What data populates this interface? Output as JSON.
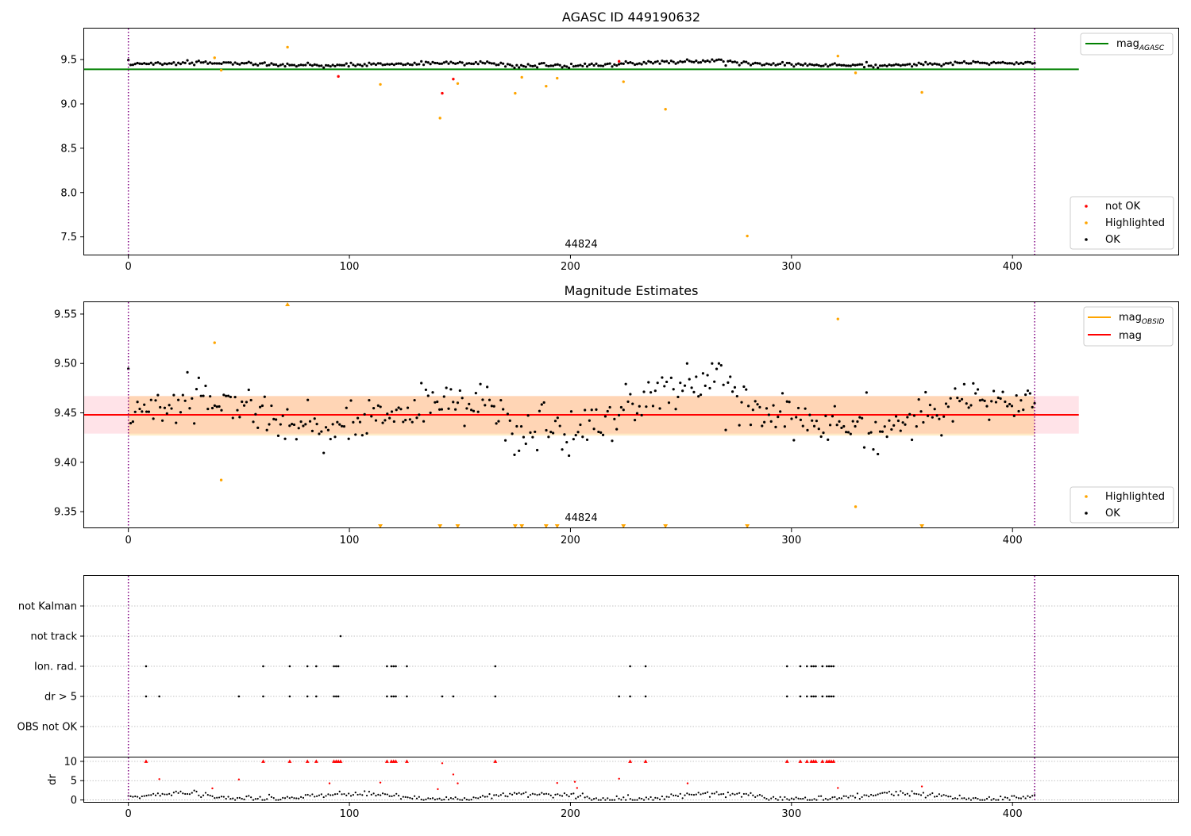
{
  "chart_data": [
    {
      "type": "scatter",
      "title": "AGASC ID 449190632",
      "xlabel": "",
      "ylabel": "",
      "xlim": [
        -20,
        475
      ],
      "ylim": [
        7.3,
        9.85
      ],
      "xticks": [
        "0",
        "100",
        "200",
        "300",
        "400"
      ],
      "yticks": [
        "7.5",
        "8.0",
        "8.5",
        "9.0",
        "9.5"
      ],
      "vlines_x": [
        0,
        410
      ],
      "annotation": {
        "text": "44824",
        "x": 205,
        "y": 7.36
      },
      "hline": {
        "label": "mag_AGASC",
        "y": 9.39,
        "xmax": 430,
        "color": "#008000"
      },
      "grid": false,
      "legend_top": {
        "placement": "top-right",
        "entries": [
          {
            "label": "mag",
            "sub": "AGASC",
            "color": "#008000",
            "kind": "line"
          }
        ]
      },
      "legend_bottom": {
        "placement": "bottom-right",
        "entries": [
          {
            "label": "not OK",
            "color": "#ff0000",
            "kind": "dot"
          },
          {
            "label": "Highlighted",
            "color": "#ffa500",
            "kind": "dot"
          },
          {
            "label": "OK",
            "color": "#000000",
            "kind": "dot"
          }
        ]
      },
      "series": [
        {
          "name": "not OK",
          "color": "#ff0000",
          "x": [
            95,
            142,
            147,
            222
          ],
          "y": [
            9.31,
            9.12,
            9.28,
            9.48
          ]
        },
        {
          "name": "Highlighted",
          "color": "#ffa500",
          "x": [
            39,
            42,
            72,
            114,
            141,
            149,
            175,
            178,
            189,
            194,
            224,
            243,
            280,
            321,
            329,
            359
          ],
          "y": [
            9.52,
            9.38,
            9.64,
            9.22,
            8.84,
            9.23,
            9.12,
            9.3,
            9.2,
            9.29,
            9.25,
            8.94,
            7.51,
            9.54,
            9.35,
            9.13
          ]
        },
        {
          "name": "OK",
          "color": "#000000",
          "x_range": [
            0,
            410
          ],
          "count": 400,
          "y_mean": 9.448,
          "y_spread": 0.02
        }
      ]
    },
    {
      "type": "scatter",
      "title": "Magnitude Estimates",
      "xlabel": "",
      "ylabel": "",
      "xlim": [
        -20,
        475
      ],
      "ylim": [
        9.334,
        9.562
      ],
      "xticks": [
        "0",
        "100",
        "200",
        "300",
        "400"
      ],
      "yticks": [
        "9.35",
        "9.40",
        "9.45",
        "9.50",
        "9.55"
      ],
      "vlines_x": [
        0,
        410
      ],
      "annotation": {
        "text": "44824",
        "x": 205,
        "y": 9.339
      },
      "mag_line": {
        "y": 9.448,
        "xmin": -20,
        "xmax": 430,
        "color": "#ff0000"
      },
      "mag_band": {
        "ymin": 9.429,
        "ymax": 9.467,
        "xmin": -20,
        "xmax": 430,
        "color": "#ffc0cb"
      },
      "obsid_band": {
        "ymin": 9.427,
        "ymax": 9.467,
        "xmin": 0,
        "xmax": 410,
        "color": "#ffa500"
      },
      "grid": false,
      "legend_top": {
        "placement": "top-right",
        "entries": [
          {
            "label": "mag",
            "sub": "OBSID",
            "color": "#ffa500",
            "kind": "line"
          },
          {
            "label": "mag",
            "sub": "",
            "color": "#ff0000",
            "kind": "line"
          }
        ]
      },
      "legend_bottom": {
        "placement": "bottom-right",
        "entries": [
          {
            "label": "Highlighted",
            "color": "#ffa500",
            "kind": "dot"
          },
          {
            "label": "OK",
            "color": "#000000",
            "kind": "dot"
          }
        ]
      },
      "highlighted_points": {
        "x": [
          39,
          42,
          321,
          329
        ],
        "y": [
          9.521,
          9.382,
          9.545,
          9.355
        ]
      },
      "out_of_range_up_x": [
        72
      ],
      "out_of_range_down_x": [
        114,
        141,
        149,
        175,
        178,
        189,
        194,
        224,
        243,
        280,
        359
      ],
      "series": [
        {
          "name": "OK",
          "color": "#000000",
          "x_range": [
            0,
            410
          ],
          "count": 400,
          "y_mean": 9.448,
          "y_spread": 0.022
        }
      ]
    },
    {
      "type": "scatter",
      "title": "",
      "xlim": [
        -20,
        475
      ],
      "categories": [
        "not Kalman",
        "not track",
        "Ion. rad.",
        "dr > 5",
        "OBS not OK"
      ],
      "vlines_x": [
        0,
        410
      ],
      "grid": true,
      "flags": {
        "not track": [
          96
        ],
        "Ion. rad.": [
          8,
          61,
          73,
          81,
          85,
          93,
          94,
          95,
          117,
          119,
          120,
          121,
          126,
          166,
          227,
          234,
          298,
          304,
          307,
          309,
          310,
          311,
          314,
          316,
          317,
          318,
          319
        ],
        "dr > 5": [
          8,
          14,
          50,
          61,
          73,
          81,
          85,
          93,
          94,
          95,
          117,
          119,
          120,
          121,
          126,
          142,
          147,
          166,
          222,
          227,
          234,
          298,
          304,
          307,
          309,
          310,
          311,
          314,
          316,
          317,
          318,
          319
        ]
      }
    },
    {
      "type": "scatter",
      "title": "",
      "ylabel": "dr",
      "xlim": [
        -20,
        475
      ],
      "ylim": [
        -0.5,
        11
      ],
      "xticks": [
        "0",
        "100",
        "200",
        "300",
        "400"
      ],
      "yticks": [
        "0",
        "5",
        "10"
      ],
      "vlines_x": [
        0,
        410
      ],
      "grid": true,
      "capped_points_x": [
        8,
        61,
        73,
        81,
        85,
        93,
        94,
        95,
        96,
        117,
        119,
        120,
        121,
        126,
        166,
        227,
        234,
        298,
        304,
        307,
        309,
        310,
        311,
        314,
        316,
        317,
        318,
        319
      ],
      "red_points": {
        "x": [
          14,
          38,
          50,
          91,
          114,
          140,
          142,
          147,
          149,
          194,
          202,
          203,
          222,
          253,
          321,
          359
        ],
        "y": [
          5.4,
          3.0,
          5.3,
          4.3,
          4.5,
          2.8,
          9.5,
          6.6,
          4.3,
          4.4,
          4.7,
          3.1,
          5.5,
          4.3,
          3.1,
          3.5
        ]
      },
      "series": [
        {
          "name": "OK",
          "color": "#000000",
          "x_range": [
            0,
            410
          ],
          "count": 400,
          "y_typical": [
            0.2,
            2.2
          ]
        }
      ]
    }
  ]
}
